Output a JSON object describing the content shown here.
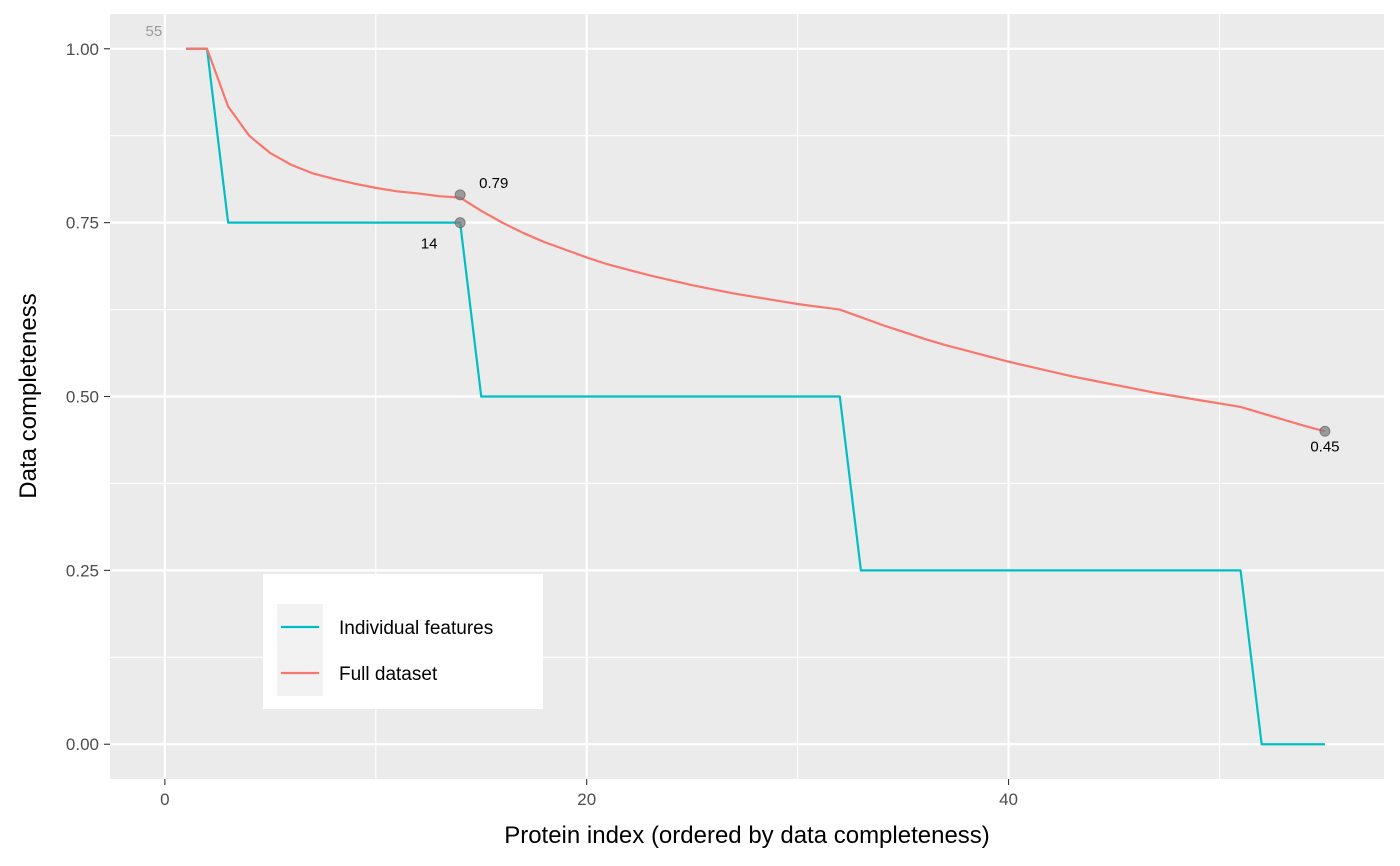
{
  "chart_data": {
    "type": "line",
    "xlabel": "Protein index (ordered by data completeness)",
    "ylabel": "Data completeness",
    "xlim": [
      -2.6,
      57.8
    ],
    "ylim": [
      -0.05,
      1.05
    ],
    "x_ticks": [
      0,
      20,
      40
    ],
    "x_tick_labels": [
      "0",
      "20",
      "40"
    ],
    "y_ticks": [
      0.0,
      0.25,
      0.5,
      0.75,
      1.0
    ],
    "y_tick_labels": [
      "0.00",
      "0.25",
      "0.50",
      "0.75",
      "1.00"
    ],
    "grid": true,
    "legend_position": "bottom-left (inside)",
    "series": [
      {
        "name": "Individual features",
        "color": "#00BFC4",
        "points": [
          [
            1,
            1.0
          ],
          [
            2,
            1.0
          ],
          [
            3,
            0.75
          ],
          [
            14,
            0.75
          ],
          [
            15,
            0.5
          ],
          [
            32,
            0.5
          ],
          [
            33,
            0.25
          ],
          [
            51,
            0.25
          ],
          [
            52,
            0.0
          ],
          [
            55,
            0.0
          ]
        ]
      },
      {
        "name": "Full dataset",
        "color": "#F8766D",
        "points": [
          [
            1,
            1.0
          ],
          [
            2,
            1.0
          ],
          [
            3,
            0.917
          ],
          [
            4,
            0.875
          ],
          [
            5,
            0.85
          ],
          [
            6,
            0.833
          ],
          [
            7,
            0.821
          ],
          [
            8,
            0.813
          ],
          [
            9,
            0.806
          ],
          [
            10,
            0.8
          ],
          [
            11,
            0.795
          ],
          [
            12,
            0.792
          ],
          [
            13,
            0.788
          ],
          [
            14,
            0.786
          ],
          [
            15,
            0.767
          ],
          [
            16,
            0.75
          ],
          [
            17,
            0.735
          ],
          [
            18,
            0.722
          ],
          [
            19,
            0.711
          ],
          [
            20,
            0.7
          ],
          [
            21,
            0.69
          ],
          [
            22,
            0.682
          ],
          [
            23,
            0.674
          ],
          [
            24,
            0.667
          ],
          [
            25,
            0.66
          ],
          [
            26,
            0.654
          ],
          [
            27,
            0.648
          ],
          [
            28,
            0.643
          ],
          [
            29,
            0.638
          ],
          [
            30,
            0.633
          ],
          [
            31,
            0.629
          ],
          [
            32,
            0.625
          ],
          [
            33,
            0.614
          ],
          [
            34,
            0.603
          ],
          [
            35,
            0.593
          ],
          [
            36,
            0.583
          ],
          [
            37,
            0.574
          ],
          [
            38,
            0.566
          ],
          [
            39,
            0.558
          ],
          [
            40,
            0.55
          ],
          [
            41,
            0.543
          ],
          [
            42,
            0.536
          ],
          [
            43,
            0.529
          ],
          [
            44,
            0.523
          ],
          [
            45,
            0.517
          ],
          [
            46,
            0.511
          ],
          [
            47,
            0.505
          ],
          [
            48,
            0.5
          ],
          [
            49,
            0.495
          ],
          [
            50,
            0.49
          ],
          [
            51,
            0.485
          ],
          [
            52,
            0.476
          ],
          [
            53,
            0.467
          ],
          [
            54,
            0.458
          ],
          [
            55,
            0.45
          ]
        ]
      }
    ],
    "highlight_points": [
      {
        "x": 14,
        "y": 0.79
      },
      {
        "x": 14,
        "y": 0.75
      },
      {
        "x": 55,
        "y": 0.45
      }
    ],
    "annotations": [
      {
        "text": "55",
        "x": 0,
        "y": 1.0,
        "style": "grey"
      },
      {
        "text": "0.79",
        "x": 14,
        "y": 0.79,
        "style": "black"
      },
      {
        "text": "14",
        "x": 14,
        "y": 0.75,
        "style": "black"
      },
      {
        "text": "0.45",
        "x": 55,
        "y": 0.45,
        "style": "black"
      }
    ],
    "legend": {
      "items": [
        {
          "label": "Individual features",
          "color": "#00BFC4"
        },
        {
          "label": "Full dataset",
          "color": "#F8766D"
        }
      ]
    }
  },
  "colors": {
    "panel_background": "#EBEBEB",
    "grid_line": "#FFFFFF",
    "point_fill": "#7F7F7F"
  }
}
